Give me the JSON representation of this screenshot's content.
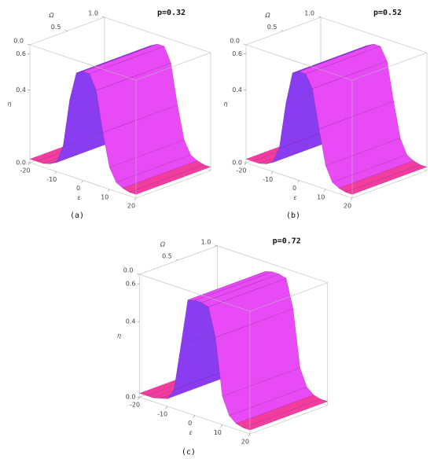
{
  "chart_data": [
    {
      "type": "surface3d",
      "title": "p=0.32",
      "label": "(a)",
      "xlabel": "ε",
      "ylabel": "Ω",
      "zlabel": "η",
      "x": [
        -20,
        -17.5,
        -15,
        -12.5,
        -10,
        -7.5,
        -5,
        -2.5,
        0,
        2.5,
        5,
        7.5,
        10,
        12.5,
        15,
        17.5,
        20
      ],
      "values": [
        0.02,
        0.02,
        0.02,
        0.03,
        0.05,
        0.15,
        0.42,
        0.58,
        0.6,
        0.6,
        0.52,
        0.3,
        0.12,
        0.05,
        0.03,
        0.02,
        0.02
      ],
      "xlim": [
        -20,
        20
      ],
      "ylim": [
        0,
        1
      ],
      "zlim": [
        0,
        0.65
      ],
      "xticks": [
        -20,
        -10,
        0,
        10,
        20
      ],
      "yticks": [
        {
          "value": 0,
          "label": "0.0"
        },
        0.5,
        {
          "value": 1,
          "label": "1.0"
        }
      ],
      "zticks": [
        {
          "value": 0,
          "label": "0.0"
        },
        0.4,
        0.6
      ],
      "colors": {
        "flat": "#f23c9e",
        "rising": "#8a3cf0",
        "falling": "#e84af5"
      }
    },
    {
      "type": "surface3d",
      "title": "p=0.52",
      "label": "(b)",
      "xlabel": "ε",
      "ylabel": "Ω",
      "zlabel": "η",
      "x": [
        -20,
        -17.5,
        -15,
        -12.5,
        -10,
        -7.5,
        -5,
        -2.5,
        0,
        2.5,
        5,
        7.5,
        10,
        12.5,
        15,
        17.5,
        20
      ],
      "values": [
        0.02,
        0.02,
        0.02,
        0.03,
        0.05,
        0.14,
        0.4,
        0.58,
        0.6,
        0.6,
        0.53,
        0.32,
        0.13,
        0.05,
        0.03,
        0.02,
        0.02
      ],
      "xlim": [
        -20,
        20
      ],
      "ylim": [
        0,
        1
      ],
      "zlim": [
        0,
        0.65
      ],
      "xticks": [
        -20,
        -10,
        0,
        10,
        20
      ],
      "yticks": [
        {
          "value": 0,
          "label": "0.0"
        },
        0.5,
        {
          "value": 1,
          "label": "1.0"
        }
      ],
      "zticks": [
        {
          "value": 0,
          "label": "0.0"
        },
        0.4,
        0.6
      ],
      "colors": {
        "flat": "#f23c9e",
        "rising": "#8a3cf0",
        "falling": "#e84af5"
      }
    },
    {
      "type": "surface3d",
      "title": "p=0.72",
      "label": "(c)",
      "xlabel": "ε",
      "ylabel": "Ω",
      "zlabel": "η",
      "x": [
        -20,
        -17.5,
        -15,
        -12.5,
        -10,
        -7.5,
        -5,
        -2.5,
        0,
        2.5,
        5,
        7.5,
        10,
        12.5,
        15,
        17.5,
        20
      ],
      "values": [
        0.02,
        0.02,
        0.02,
        0.03,
        0.04,
        0.1,
        0.35,
        0.6,
        0.61,
        0.61,
        0.6,
        0.45,
        0.15,
        0.06,
        0.03,
        0.02,
        0.02
      ],
      "xlim": [
        -20,
        20
      ],
      "ylim": [
        0,
        1
      ],
      "zlim": [
        0,
        0.65
      ],
      "xticks": [
        -20,
        -10,
        0,
        10,
        20
      ],
      "yticks": [
        {
          "value": 0,
          "label": "0.0"
        },
        0.5,
        {
          "value": 1,
          "label": "1.0"
        }
      ],
      "zticks": [
        {
          "value": 0,
          "label": "0.0"
        },
        0.4,
        0.6
      ],
      "colors": {
        "flat": "#f23c9e",
        "rising": "#8a3cf0",
        "falling": "#e84af5"
      }
    }
  ]
}
